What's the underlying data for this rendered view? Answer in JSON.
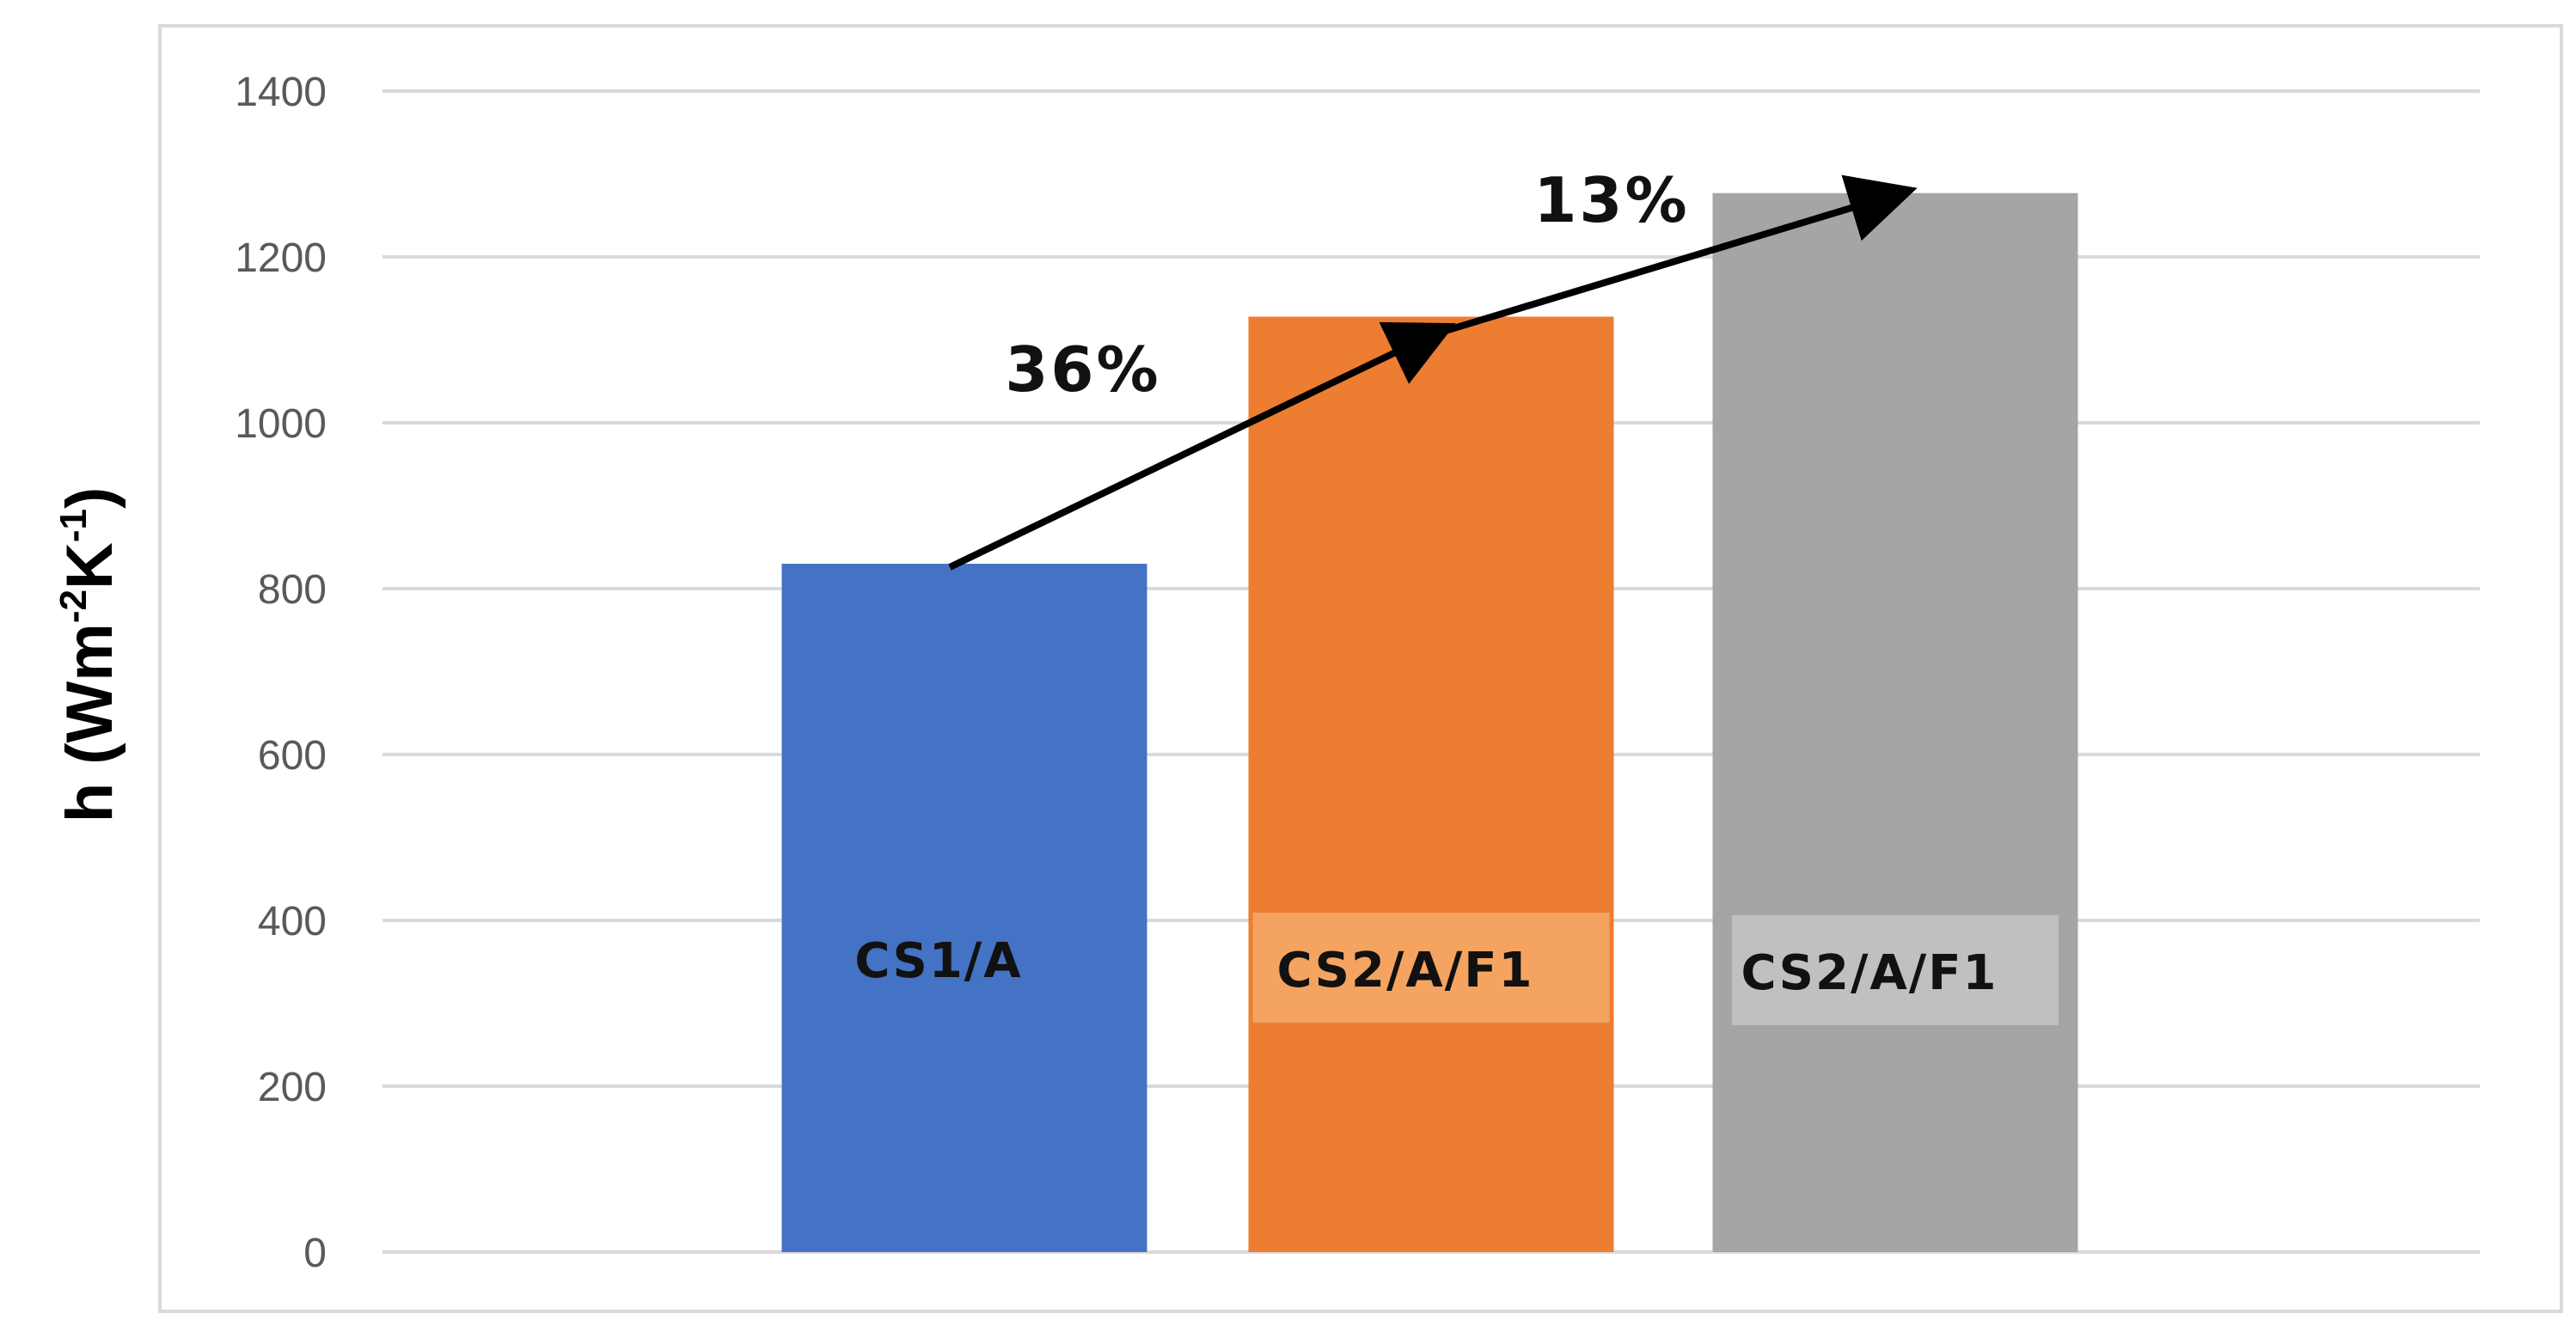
{
  "chart_data": {
    "type": "bar",
    "categories": [
      "CS1/A",
      "CS2/A/F1",
      "CS2/A/F1"
    ],
    "values": [
      830,
      1128,
      1277
    ],
    "colors": [
      "#4472C4",
      "#ED7D31",
      "#A5A5A5"
    ],
    "label_box_colors": [
      "",
      "#F4A460",
      "#C0C0C0"
    ],
    "title": "",
    "xlabel": "",
    "ylabel": {
      "base": "h (Wm",
      "sup1": "-2",
      "mid": "K",
      "sup2": "-1",
      "end": ")"
    },
    "ylim": [
      0,
      1400
    ],
    "yticks": [
      "0",
      "200",
      "400",
      "600",
      "800",
      "1000",
      "1200",
      "1400"
    ],
    "grid": true,
    "legend": "none",
    "annotations": [
      {
        "text": "36%",
        "from_bar": 0,
        "to_bar": 1
      },
      {
        "text": "13%",
        "from_bar": 1,
        "to_bar": 2
      }
    ],
    "gridline_color": "#D9D9D9",
    "axis_line_color": "#D9D9D9",
    "frame_color": "#D9D9D9",
    "arrow_color": "#000000"
  }
}
